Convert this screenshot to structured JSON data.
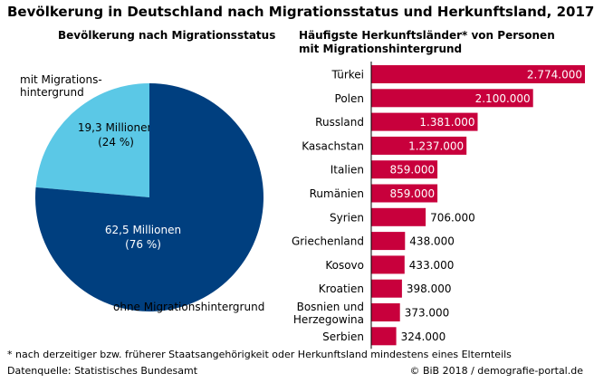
{
  "title": "Bevölkerung in Deutschland nach Migrationsstatus und Herkunftsland, 2017",
  "colors": {
    "bar": "#c8003c",
    "pie_with": "#5bc8e6",
    "pie_without": "#003f7f"
  },
  "chart_data": [
    {
      "type": "pie",
      "title": "Bevölkerung nach Migrationsstatus",
      "slices": [
        {
          "label_lines": [
            "mit Migrations-",
            "hintergrund"
          ],
          "value": 19.3,
          "value_label": "19,3 Millionen",
          "percent_label": "(24 %)",
          "color": "#5bc8e6",
          "text_color": "#000000"
        },
        {
          "label_lines": [
            "ohne Migrationshintergrund"
          ],
          "value": 62.5,
          "value_label": "62,5 Millionen",
          "percent_label": "(76 %)",
          "color": "#003f7f",
          "text_color": "#ffffff"
        }
      ]
    },
    {
      "type": "bar",
      "orientation": "horizontal",
      "title_lines": [
        "Häufigste Herkunftsländer* von Personen",
        "mit Migrationshintergrund"
      ],
      "xlim": [
        0,
        2774000
      ],
      "categories": [
        [
          "Türkei"
        ],
        [
          "Polen"
        ],
        [
          "Russland"
        ],
        [
          "Kasachstan"
        ],
        [
          "Italien"
        ],
        [
          "Rumänien"
        ],
        [
          "Syrien"
        ],
        [
          "Griechenland"
        ],
        [
          "Kosovo"
        ],
        [
          "Kroatien"
        ],
        [
          "Bosnien und",
          "Herzegowina"
        ],
        [
          "Serbien"
        ]
      ],
      "values": [
        2774000,
        2100000,
        1381000,
        1237000,
        859000,
        859000,
        706000,
        438000,
        433000,
        398000,
        373000,
        324000
      ],
      "value_labels": [
        "2.774.000",
        "2.100.000",
        "1.381.000",
        "1.237.000",
        "859.000",
        "859.000",
        "706.000",
        "438.000",
        "433.000",
        "398.000",
        "373.000",
        "324.000"
      ]
    }
  ],
  "footnote": "* nach derzeitiger bzw. früherer Staatsangehörigkeit oder Herkunftsland mindestens eines Elternteils",
  "source": "Datenquelle: Statistisches Bundesamt",
  "copyright": "© BiB 2018 / demografie-portal.de"
}
